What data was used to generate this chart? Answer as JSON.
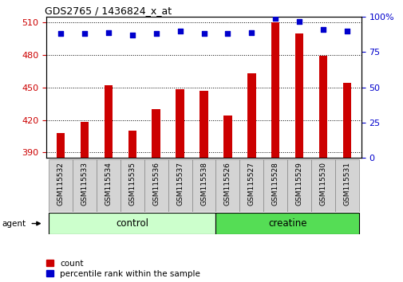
{
  "title": "GDS2765 / 1436824_x_at",
  "samples": [
    "GSM115532",
    "GSM115533",
    "GSM115534",
    "GSM115535",
    "GSM115536",
    "GSM115537",
    "GSM115538",
    "GSM115526",
    "GSM115527",
    "GSM115528",
    "GSM115529",
    "GSM115530",
    "GSM115531"
  ],
  "counts": [
    408,
    418,
    452,
    410,
    430,
    448,
    447,
    424,
    463,
    510,
    500,
    479,
    454
  ],
  "percentiles": [
    88,
    88,
    89,
    87,
    88,
    90,
    88,
    88,
    89,
    99,
    97,
    91,
    90
  ],
  "n_control": 7,
  "n_creatine": 6,
  "bar_color": "#cc0000",
  "dot_color": "#0000cc",
  "ylim_left": [
    385,
    515
  ],
  "ylim_right": [
    0,
    100
  ],
  "yticks_left": [
    390,
    420,
    450,
    480,
    510
  ],
  "yticks_right": [
    0,
    25,
    50,
    75,
    100
  ],
  "control_color": "#ccffcc",
  "creatine_color": "#55dd55",
  "tick_label_gray": "#d0d0d0",
  "legend_labels": [
    "count",
    "percentile rank within the sample"
  ]
}
